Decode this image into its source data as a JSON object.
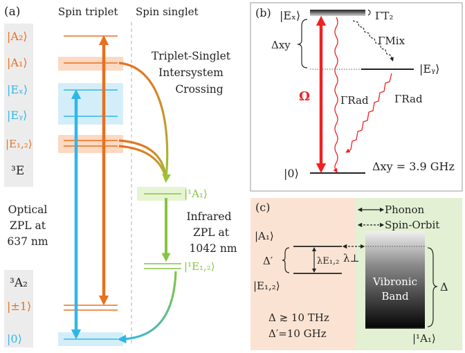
{
  "colors": {
    "orange": "#e8701e",
    "cyan": "#2fb6e8",
    "green": "#86c440",
    "red": "#ee2222",
    "dark": "#222222",
    "panel_gray": "#ececec",
    "band_orange": "#fbd9c2",
    "band_cyan": "#d4eef9",
    "band_green": "#e6f4d4",
    "panel_c_left": "#fbe3d3",
    "panel_c_right": "#e3f0d3"
  },
  "panel_a": {
    "tag": "(a)",
    "col_triplet": "Spin triplet",
    "col_singlet": "Spin singlet",
    "levels": {
      "A2": "|A₂⟩",
      "A1": "|A₁⟩",
      "Ex": "|Eₓ⟩",
      "Ey": "|Eᵧ⟩",
      "E12": "|E₁,₂⟩",
      "pm1": "|±1⟩",
      "zero": "|0⟩",
      "singlet_A1": "|¹A₁⟩",
      "singlet_E12": "|¹E₁,₂⟩"
    },
    "term_3E": "³E",
    "term_3A2": "³A₂",
    "isc_label": [
      "Triplet-Singlet",
      "Intersystem",
      "Crossing"
    ],
    "optical_label": [
      "Optical",
      "ZPL at",
      "637 nm"
    ],
    "infrared_label": [
      "Infrared",
      "ZPL at",
      "1042 nm"
    ]
  },
  "panel_b": {
    "tag": "(b)",
    "Ex": "|Eₓ⟩",
    "Ey": "|Eᵧ⟩",
    "zero": "|0⟩",
    "delta_xy": "Δxy",
    "omega": "Ω",
    "gamma_rad": "ΓRad",
    "gamma_mix": "ΓMix",
    "gamma_t2": "ΓT₂",
    "delta_value": "Δxy = 3.9 GHz"
  },
  "panel_c": {
    "tag": "(c)",
    "legend_phonon": "Phonon",
    "legend_spin_orbit": "Spin-Orbit",
    "A1": "|A₁⟩",
    "E12": "|E₁,₂⟩",
    "delta_prime": "Δ′",
    "lambda_E12": "λE₁,₂",
    "lambda_perp": "λ⊥",
    "band_line1": "Vibronic",
    "band_line2": "Band",
    "delta": "Δ",
    "singlet_A1": "|¹A₁⟩",
    "cond1": "Δ ≳ 10 THz",
    "cond2": "Δ′=10 GHz"
  }
}
